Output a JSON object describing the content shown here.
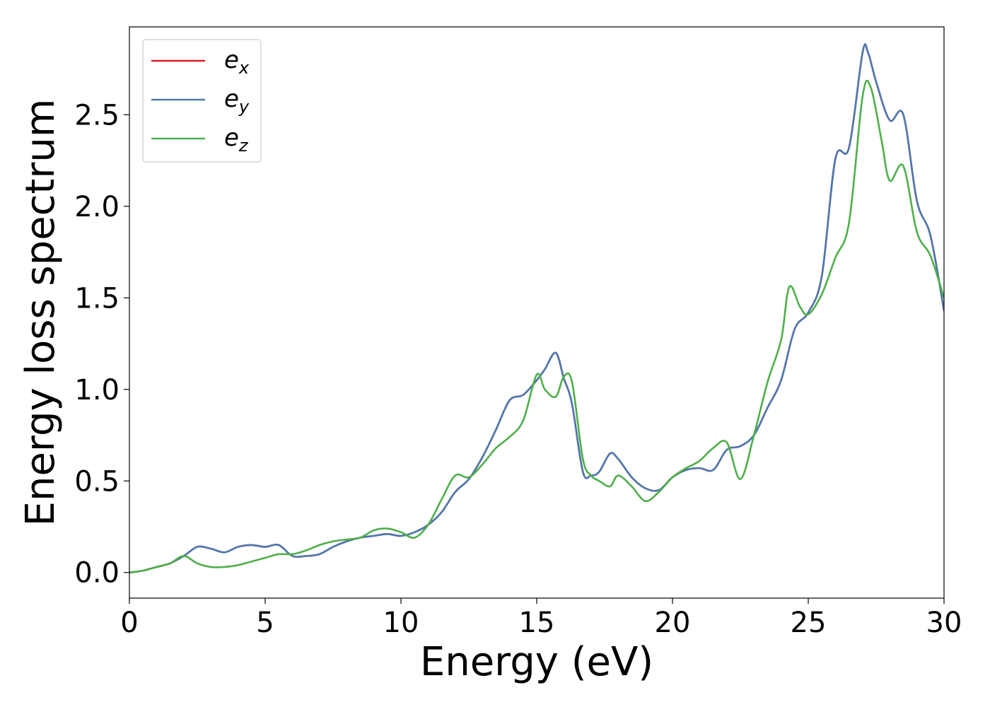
{
  "chart_data": {
    "type": "line",
    "xlabel": "Energy (eV)",
    "ylabel": "Energy loss spectrum",
    "xlim": [
      0,
      30
    ],
    "ylim": [
      -0.14,
      2.98
    ],
    "xticks": [
      0,
      5,
      10,
      15,
      20,
      25,
      30
    ],
    "xtick_labels": [
      "0",
      "5",
      "10",
      "15",
      "20",
      "25",
      "30"
    ],
    "yticks": [
      0.0,
      0.5,
      1.0,
      1.5,
      2.0,
      2.5
    ],
    "ytick_labels": [
      "0.0",
      "0.5",
      "1.0",
      "1.5",
      "2.0",
      "2.5"
    ],
    "grid": false,
    "legend_position": "top-left",
    "series": [
      {
        "name": "e_x",
        "label_base": "e",
        "label_sub": "x",
        "color": "#e41a1c",
        "x": [
          0,
          0.5,
          1,
          1.5,
          2,
          2.5,
          3,
          3.5,
          4,
          4.5,
          5,
          5.5,
          6,
          6.5,
          7,
          7.5,
          8,
          8.5,
          9,
          9.5,
          10,
          10.5,
          11,
          11.5,
          12,
          12.5,
          13,
          13.5,
          14,
          14.5,
          15,
          15.3,
          15.7,
          16,
          16.3,
          16.7,
          17,
          17.3,
          17.7,
          18,
          18.5,
          19,
          19.5,
          20,
          20.5,
          21,
          21.5,
          22,
          22.5,
          23,
          23.5,
          24,
          24.5,
          25,
          25.5,
          26,
          26.5,
          27,
          27.2,
          27.5,
          28,
          28.5,
          29,
          29.5,
          30
        ],
        "y": [
          0.0,
          0.01,
          0.03,
          0.05,
          0.09,
          0.14,
          0.13,
          0.11,
          0.14,
          0.15,
          0.14,
          0.15,
          0.09,
          0.09,
          0.1,
          0.14,
          0.17,
          0.19,
          0.2,
          0.21,
          0.2,
          0.22,
          0.26,
          0.33,
          0.44,
          0.51,
          0.63,
          0.78,
          0.94,
          0.97,
          1.05,
          1.11,
          1.2,
          1.06,
          0.92,
          0.55,
          0.53,
          0.55,
          0.65,
          0.62,
          0.52,
          0.46,
          0.45,
          0.52,
          0.56,
          0.57,
          0.56,
          0.67,
          0.69,
          0.75,
          0.9,
          1.05,
          1.33,
          1.42,
          1.62,
          2.26,
          2.32,
          2.84,
          2.84,
          2.68,
          2.47,
          2.5,
          2.03,
          1.84,
          1.43
        ]
      },
      {
        "name": "e_y",
        "label_base": "e",
        "label_sub": "y",
        "color": "#4a7ab0",
        "x": [
          0,
          0.5,
          1,
          1.5,
          2,
          2.5,
          3,
          3.5,
          4,
          4.5,
          5,
          5.5,
          6,
          6.5,
          7,
          7.5,
          8,
          8.5,
          9,
          9.5,
          10,
          10.5,
          11,
          11.5,
          12,
          12.5,
          13,
          13.5,
          14,
          14.5,
          15,
          15.3,
          15.7,
          16,
          16.3,
          16.7,
          17,
          17.3,
          17.7,
          18,
          18.5,
          19,
          19.5,
          20,
          20.5,
          21,
          21.5,
          22,
          22.5,
          23,
          23.5,
          24,
          24.5,
          25,
          25.5,
          26,
          26.5,
          27,
          27.2,
          27.5,
          28,
          28.5,
          29,
          29.5,
          30
        ],
        "y": [
          0.0,
          0.01,
          0.03,
          0.05,
          0.09,
          0.14,
          0.13,
          0.11,
          0.14,
          0.15,
          0.14,
          0.15,
          0.09,
          0.09,
          0.1,
          0.14,
          0.17,
          0.19,
          0.2,
          0.21,
          0.2,
          0.22,
          0.26,
          0.33,
          0.44,
          0.51,
          0.63,
          0.78,
          0.94,
          0.97,
          1.05,
          1.11,
          1.2,
          1.06,
          0.92,
          0.55,
          0.53,
          0.55,
          0.65,
          0.62,
          0.52,
          0.46,
          0.45,
          0.52,
          0.56,
          0.57,
          0.56,
          0.67,
          0.69,
          0.75,
          0.9,
          1.05,
          1.33,
          1.42,
          1.62,
          2.26,
          2.32,
          2.84,
          2.84,
          2.68,
          2.47,
          2.5,
          2.03,
          1.84,
          1.43
        ]
      },
      {
        "name": "e_z",
        "label_base": "e",
        "label_sub": "z",
        "color": "#4daf4a",
        "x": [
          0,
          0.5,
          1,
          1.5,
          2,
          2.5,
          3,
          3.5,
          4,
          4.5,
          5,
          5.5,
          6,
          6.5,
          7,
          7.5,
          8,
          8.5,
          9,
          9.5,
          10,
          10.5,
          11,
          11.5,
          12,
          12.5,
          13,
          13.5,
          14,
          14.5,
          15,
          15.3,
          15.7,
          16,
          16.3,
          16.7,
          17,
          17.3,
          17.7,
          18,
          18.5,
          19,
          19.5,
          20,
          20.5,
          21,
          21.5,
          22,
          22.5,
          23,
          23.5,
          24,
          24.3,
          24.7,
          25,
          25.5,
          26,
          26.5,
          27,
          27.3,
          27.7,
          28,
          28.5,
          29,
          29.5,
          30
        ],
        "y": [
          0.0,
          0.01,
          0.03,
          0.05,
          0.09,
          0.05,
          0.03,
          0.03,
          0.04,
          0.06,
          0.08,
          0.1,
          0.1,
          0.12,
          0.15,
          0.17,
          0.18,
          0.19,
          0.23,
          0.24,
          0.22,
          0.19,
          0.26,
          0.4,
          0.53,
          0.52,
          0.59,
          0.68,
          0.74,
          0.83,
          1.08,
          1.0,
          0.96,
          1.07,
          1.04,
          0.62,
          0.53,
          0.5,
          0.47,
          0.53,
          0.47,
          0.39,
          0.44,
          0.52,
          0.57,
          0.61,
          0.68,
          0.71,
          0.51,
          0.75,
          1.04,
          1.27,
          1.56,
          1.45,
          1.41,
          1.52,
          1.72,
          1.91,
          2.6,
          2.65,
          2.36,
          2.14,
          2.22,
          1.86,
          1.73,
          1.5
        ]
      }
    ]
  }
}
